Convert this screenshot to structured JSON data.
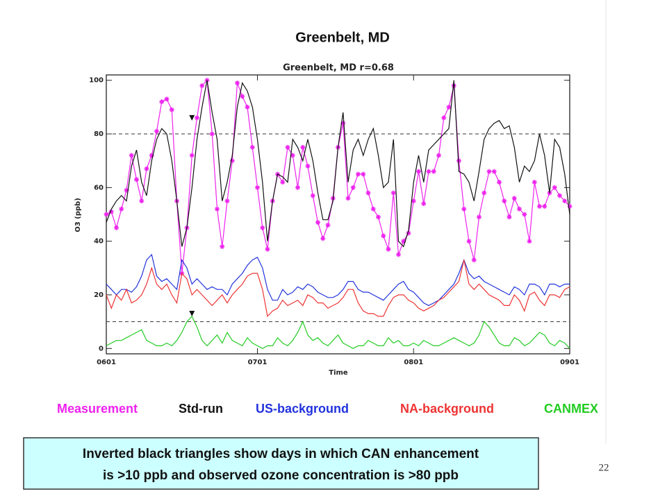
{
  "chart_data": {
    "type": "line",
    "title": "Greenbelt, MD",
    "inner_title": "Greenbelt, MD  r=0.68",
    "x_label": "Time",
    "y_label": "O3 (ppb)",
    "xlim": [
      0,
      92
    ],
    "xticks": [
      {
        "value": 0,
        "label": "0601"
      },
      {
        "value": 30,
        "label": "0701"
      },
      {
        "value": 61,
        "label": "0801"
      },
      {
        "value": 92,
        "label": "0901"
      }
    ],
    "ylim": [
      -2,
      102
    ],
    "yticks": [
      0,
      20,
      40,
      60,
      80,
      100
    ],
    "reference_lines": [
      80,
      10
    ],
    "x": [
      0,
      1,
      2,
      3,
      4,
      5,
      6,
      7,
      8,
      9,
      10,
      11,
      12,
      13,
      14,
      15,
      16,
      17,
      18,
      19,
      20,
      21,
      22,
      23,
      24,
      25,
      26,
      27,
      28,
      29,
      30,
      31,
      32,
      33,
      34,
      35,
      36,
      37,
      38,
      39,
      40,
      41,
      42,
      43,
      44,
      45,
      46,
      47,
      48,
      49,
      50,
      51,
      52,
      53,
      54,
      55,
      56,
      57,
      58,
      59,
      60,
      61,
      62,
      63,
      64,
      65,
      66,
      67,
      68,
      69,
      70,
      71,
      72,
      73,
      74,
      75,
      76,
      77,
      78,
      79,
      80,
      81,
      82,
      83,
      84,
      85,
      86,
      87,
      88,
      89,
      90,
      91,
      92
    ],
    "series": [
      {
        "name": "Measurement",
        "color": "#ee22ee",
        "markers": true,
        "values": [
          50,
          51,
          45,
          52,
          59,
          72,
          63,
          55,
          67,
          72,
          81,
          92,
          93,
          89,
          55,
          28,
          45,
          72,
          86,
          98,
          100,
          80,
          52,
          38,
          55,
          70,
          99,
          94,
          90,
          75,
          60,
          45,
          37,
          55,
          65,
          62,
          75,
          72,
          60,
          75,
          68,
          57,
          47,
          41,
          46,
          56,
          75,
          84,
          56,
          60,
          65,
          65,
          58,
          52,
          49,
          42,
          37,
          58,
          35,
          40,
          43,
          55,
          66,
          54,
          66,
          66,
          72,
          86,
          90,
          98,
          70,
          52,
          40,
          33,
          49,
          58,
          66,
          66,
          62,
          55,
          49,
          56,
          52,
          50,
          40,
          62,
          53,
          53,
          58,
          60,
          57,
          55,
          53
        ]
      },
      {
        "name": "Std-run",
        "color": "#111111",
        "values": [
          47,
          52,
          55,
          57,
          55,
          68,
          74,
          62,
          57,
          70,
          78,
          82,
          80,
          70,
          55,
          38,
          45,
          60,
          78,
          90,
          100,
          88,
          78,
          55,
          62,
          72,
          90,
          99,
          96,
          90,
          78,
          62,
          40,
          55,
          65,
          64,
          62,
          78,
          75,
          70,
          78,
          70,
          58,
          48,
          48,
          55,
          75,
          88,
          62,
          74,
          78,
          72,
          78,
          82,
          72,
          60,
          62,
          78,
          40,
          38,
          44,
          62,
          72,
          62,
          74,
          76,
          78,
          80,
          82,
          100,
          66,
          65,
          62,
          55,
          66,
          78,
          82,
          84,
          85,
          82,
          83,
          75,
          62,
          68,
          66,
          70,
          80,
          72,
          58,
          78,
          75,
          65,
          50
        ]
      },
      {
        "name": "US-background",
        "color": "#2233dd",
        "values": [
          24,
          22,
          20,
          22,
          22,
          21,
          23,
          27,
          33,
          35,
          27,
          25,
          26,
          24,
          22,
          33,
          30,
          24,
          26,
          24,
          22,
          23,
          22,
          22,
          20,
          24,
          26,
          28,
          31,
          33,
          34,
          30,
          22,
          18,
          18,
          22,
          20,
          21,
          23,
          22,
          24,
          23,
          21,
          20,
          19,
          19,
          20,
          22,
          25,
          25,
          22,
          21,
          21,
          20,
          19,
          18,
          20,
          22,
          24,
          25,
          22,
          21,
          19,
          17,
          16,
          17,
          18,
          20,
          22,
          24,
          28,
          33,
          28,
          26,
          27,
          25,
          24,
          23,
          22,
          21,
          20,
          23,
          22,
          20,
          24,
          24,
          23,
          20,
          24,
          24,
          23,
          24,
          24
        ]
      },
      {
        "name": "NA-background",
        "color": "#ee3333",
        "values": [
          20,
          15,
          20,
          18,
          22,
          17,
          18,
          20,
          24,
          30,
          24,
          22,
          24,
          20,
          17,
          28,
          26,
          20,
          22,
          20,
          18,
          16,
          18,
          20,
          17,
          20,
          22,
          24,
          27,
          28,
          28,
          22,
          12,
          14,
          15,
          18,
          16,
          17,
          18,
          16,
          20,
          19,
          17,
          17,
          15,
          16,
          17,
          19,
          22,
          22,
          17,
          14,
          13,
          13,
          12,
          12,
          16,
          19,
          20,
          20,
          18,
          17,
          15,
          14,
          15,
          16,
          18,
          19,
          21,
          23,
          25,
          33,
          24,
          22,
          24,
          22,
          20,
          19,
          18,
          16,
          16,
          20,
          18,
          14,
          20,
          21,
          18,
          16,
          20,
          20,
          19,
          22,
          23
        ]
      },
      {
        "name": "CANMEX",
        "color": "#22cc22",
        "values": [
          1,
          2,
          3,
          3,
          4,
          5,
          6,
          7,
          3,
          2,
          1,
          1,
          2,
          1,
          3,
          6,
          10,
          12,
          8,
          3,
          1,
          3,
          5,
          2,
          6,
          3,
          2,
          1,
          4,
          2,
          1,
          0,
          1,
          1,
          4,
          2,
          1,
          3,
          6,
          10,
          5,
          3,
          4,
          2,
          1,
          3,
          5,
          2,
          1,
          0,
          1,
          1,
          3,
          2,
          1,
          1,
          4,
          2,
          3,
          1,
          1,
          2,
          1,
          3,
          2,
          1,
          1,
          2,
          3,
          4,
          3,
          2,
          1,
          2,
          5,
          10,
          8,
          5,
          2,
          1,
          1,
          4,
          3,
          1,
          2,
          4,
          6,
          5,
          2,
          1,
          3,
          2,
          0
        ]
      }
    ],
    "triangle_markers": [
      {
        "x": 17,
        "y": 86
      },
      {
        "x": 17,
        "y": 13
      }
    ],
    "note": [
      "Inverted black triangles show days in which CAN enhancement",
      "is >10 ppb and observed ozone concentration is >80 ppb"
    ],
    "page_number": "22"
  }
}
